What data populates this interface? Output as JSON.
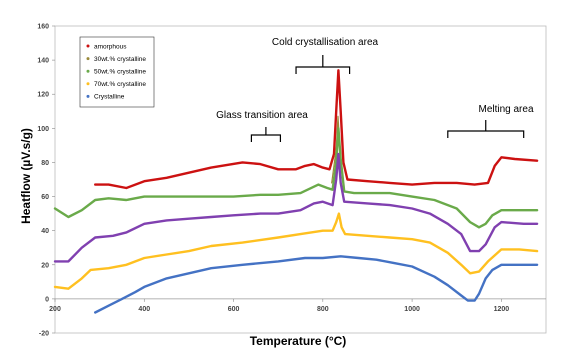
{
  "chart_data": {
    "type": "line",
    "xlabel": "Temperature (°C)",
    "ylabel": "Heatflow (µV.s/g)",
    "xlim": [
      200,
      1300
    ],
    "ylim": [
      -20,
      160
    ],
    "xticks": [
      200,
      400,
      600,
      800,
      1000,
      1200
    ],
    "yticks": [
      -20,
      0,
      20,
      40,
      60,
      80,
      100,
      120,
      140,
      160
    ],
    "grid": false,
    "legend_position": "top-left",
    "series": [
      {
        "name": "amorphous",
        "color": "#cc1111",
        "points": [
          [
            290,
            67
          ],
          [
            320,
            67
          ],
          [
            360,
            65
          ],
          [
            400,
            69
          ],
          [
            450,
            71
          ],
          [
            500,
            74
          ],
          [
            550,
            77
          ],
          [
            620,
            80
          ],
          [
            660,
            79
          ],
          [
            700,
            76
          ],
          [
            740,
            76
          ],
          [
            760,
            78
          ],
          [
            780,
            79
          ],
          [
            800,
            77
          ],
          [
            815,
            76
          ],
          [
            825,
            85
          ],
          [
            830,
            110
          ],
          [
            835,
            134
          ],
          [
            840,
            110
          ],
          [
            846,
            80
          ],
          [
            855,
            70
          ],
          [
            900,
            69
          ],
          [
            950,
            68
          ],
          [
            1000,
            67
          ],
          [
            1050,
            68
          ],
          [
            1100,
            68
          ],
          [
            1140,
            67
          ],
          [
            1170,
            68
          ],
          [
            1185,
            78
          ],
          [
            1200,
            83
          ],
          [
            1230,
            82
          ],
          [
            1280,
            81
          ]
        ]
      },
      {
        "name": "30wt.% crystalline",
        "color": "#9a8a3a",
        "points": [
          [
            820,
            68
          ],
          [
            830,
            88
          ],
          [
            834,
            107
          ],
          [
            838,
            90
          ],
          [
            845,
            70
          ]
        ]
      },
      {
        "name": "50wt.% crystalline",
        "color": "#6aaa4a",
        "points": [
          [
            200,
            53
          ],
          [
            230,
            48
          ],
          [
            260,
            52
          ],
          [
            290,
            58
          ],
          [
            320,
            59
          ],
          [
            360,
            58
          ],
          [
            400,
            60
          ],
          [
            450,
            60
          ],
          [
            500,
            60
          ],
          [
            600,
            60
          ],
          [
            660,
            61
          ],
          [
            700,
            61
          ],
          [
            750,
            62
          ],
          [
            790,
            67
          ],
          [
            810,
            65
          ],
          [
            822,
            64
          ],
          [
            830,
            80
          ],
          [
            835,
            100
          ],
          [
            840,
            82
          ],
          [
            848,
            63
          ],
          [
            870,
            62
          ],
          [
            900,
            62
          ],
          [
            950,
            62
          ],
          [
            1000,
            60
          ],
          [
            1050,
            58
          ],
          [
            1100,
            53
          ],
          [
            1130,
            45
          ],
          [
            1150,
            42
          ],
          [
            1165,
            44
          ],
          [
            1180,
            49
          ],
          [
            1200,
            52
          ],
          [
            1250,
            52
          ],
          [
            1280,
            52
          ]
        ]
      },
      {
        "name": "70wt.% crystalline",
        "color": "#ffc020",
        "points": [
          [
            200,
            7
          ],
          [
            230,
            6
          ],
          [
            260,
            12
          ],
          [
            280,
            17
          ],
          [
            320,
            18
          ],
          [
            360,
            20
          ],
          [
            400,
            24
          ],
          [
            450,
            26
          ],
          [
            500,
            28
          ],
          [
            550,
            31
          ],
          [
            620,
            33
          ],
          [
            700,
            36
          ],
          [
            750,
            38
          ],
          [
            800,
            40
          ],
          [
            822,
            40
          ],
          [
            830,
            45
          ],
          [
            836,
            50
          ],
          [
            842,
            42
          ],
          [
            850,
            38
          ],
          [
            900,
            37
          ],
          [
            950,
            36
          ],
          [
            1000,
            35
          ],
          [
            1040,
            33
          ],
          [
            1080,
            27
          ],
          [
            1110,
            20
          ],
          [
            1130,
            15
          ],
          [
            1150,
            16
          ],
          [
            1170,
            22
          ],
          [
            1200,
            29
          ],
          [
            1240,
            29
          ],
          [
            1280,
            28
          ]
        ]
      },
      {
        "name": "70wt.% crystalline (purple)",
        "color": "#8040b0",
        "points": [
          [
            200,
            22
          ],
          [
            230,
            22
          ],
          [
            260,
            30
          ],
          [
            290,
            36
          ],
          [
            330,
            37
          ],
          [
            360,
            39
          ],
          [
            400,
            44
          ],
          [
            450,
            46
          ],
          [
            500,
            47
          ],
          [
            550,
            48
          ],
          [
            600,
            49
          ],
          [
            660,
            50
          ],
          [
            700,
            50
          ],
          [
            750,
            52
          ],
          [
            780,
            56
          ],
          [
            800,
            57
          ],
          [
            822,
            55
          ],
          [
            830,
            70
          ],
          [
            835,
            85
          ],
          [
            840,
            68
          ],
          [
            848,
            57
          ],
          [
            900,
            56
          ],
          [
            950,
            55
          ],
          [
            1000,
            53
          ],
          [
            1040,
            50
          ],
          [
            1080,
            44
          ],
          [
            1110,
            38
          ],
          [
            1130,
            28
          ],
          [
            1150,
            28
          ],
          [
            1165,
            32
          ],
          [
            1185,
            42
          ],
          [
            1200,
            45
          ],
          [
            1250,
            44
          ],
          [
            1280,
            44
          ]
        ]
      },
      {
        "name": "Crystalline",
        "color": "#4472c4",
        "points": [
          [
            290,
            -8
          ],
          [
            320,
            -4
          ],
          [
            350,
            0
          ],
          [
            380,
            4
          ],
          [
            400,
            7
          ],
          [
            450,
            12
          ],
          [
            500,
            15
          ],
          [
            550,
            18
          ],
          [
            620,
            20
          ],
          [
            700,
            22
          ],
          [
            760,
            24
          ],
          [
            800,
            24
          ],
          [
            840,
            25
          ],
          [
            880,
            24
          ],
          [
            920,
            23
          ],
          [
            960,
            21
          ],
          [
            1000,
            19
          ],
          [
            1050,
            13
          ],
          [
            1080,
            8
          ],
          [
            1110,
            2
          ],
          [
            1125,
            -1
          ],
          [
            1140,
            -1
          ],
          [
            1150,
            3
          ],
          [
            1165,
            12
          ],
          [
            1180,
            17
          ],
          [
            1200,
            20
          ],
          [
            1240,
            20
          ],
          [
            1280,
            20
          ]
        ]
      }
    ],
    "legend": [
      "amorphous",
      "30wt.% crystalline",
      "50wt.% crystalline",
      "70wt.% crystalline",
      "Crystalline"
    ],
    "legend_colors": [
      "#cc1111",
      "#9a8a3a",
      "#6aaa4a",
      "#ffc020",
      "#4472c4"
    ],
    "annotations": [
      {
        "text": "Cold crystallisation area"
      },
      {
        "text": "Glass transition area"
      },
      {
        "text": "Melting area"
      }
    ]
  }
}
